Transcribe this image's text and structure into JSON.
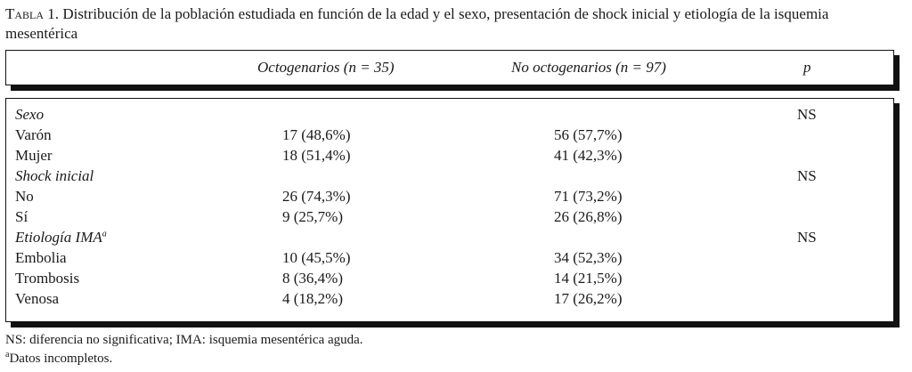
{
  "caption": {
    "label": "Tabla 1.",
    "text": " Distribución de la población estudiada en función de la edad y el sexo, presentación de shock inicial y etiología de la isquemia mesentérica"
  },
  "header": {
    "col_oct": "Octogenarios (n = 35)",
    "col_noct": "No octogenarios (n = 97)",
    "col_p": "p"
  },
  "rows": [
    {
      "label": "Sexo",
      "oct": "",
      "noct": "",
      "p": "NS",
      "italic": true
    },
    {
      "label": "Varón",
      "oct": "17 (48,6%)",
      "noct": "56 (57,7%)",
      "p": ""
    },
    {
      "label": "Mujer",
      "oct": "18 (51,4%)",
      "noct": "41 (42,3%)",
      "p": ""
    },
    {
      "label": "Shock inicial",
      "oct": "",
      "noct": "",
      "p": "NS",
      "italic": true
    },
    {
      "label": "No",
      "oct": "26 (74,3%)",
      "noct": "71 (73,2%)",
      "p": ""
    },
    {
      "label": "Sí",
      "oct": "9 (25,7%)",
      "noct": "26 (26,8%)",
      "p": ""
    },
    {
      "label": "Etiología IMA",
      "sup": "a",
      "oct": "",
      "noct": "",
      "p": "NS",
      "italic": true
    },
    {
      "label": "Embolia",
      "oct": "10 (45,5%)",
      "noct": "34 (52,3%)",
      "p": ""
    },
    {
      "label": "Trombosis",
      "oct": "8 (36,4%)",
      "noct": "14 (21,5%)",
      "p": ""
    },
    {
      "label": "Venosa",
      "oct": "4 (18,2%)",
      "noct": "17 (26,2%)",
      "p": ""
    }
  ],
  "footnotes": {
    "ns": "NS: diferencia no significativa; IMA: isquemia mesentérica aguda.",
    "a_mark": "a",
    "a_text": "Datos incompletos."
  }
}
